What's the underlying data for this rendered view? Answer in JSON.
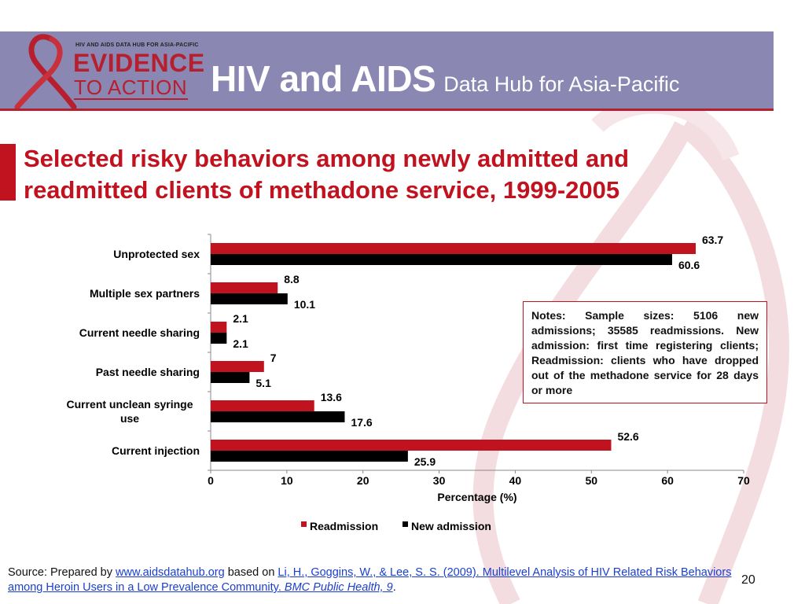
{
  "header": {
    "logo_tagline": "HIV AND AIDS DATA HUB FOR ASIA-PACIFIC",
    "logo_line1": "EVIDENCE",
    "logo_line2": "TO ACTION",
    "title_main": "HIV and AIDS",
    "title_sub": "Data Hub for Asia-Pacific"
  },
  "slide": {
    "title_line1": "Selected risky behaviors among newly admitted and",
    "title_line2": "readmitted clients of methadone service, 1999-2005",
    "page_number": "20"
  },
  "notes": {
    "text": "Notes: Sample sizes: 5106 new admissions; 35585 readmissions. New admission: first time registering clients; Readmission: clients who have dropped out of the methadone service for 28 days or more"
  },
  "source": {
    "prefix": "Source: Prepared by ",
    "link1": "www.aidsdatahub.org",
    "middle": " based on ",
    "link2": "Li, H., Goggins, W., & Lee, S. S. (2009). Multilevel Analysis of HIV Related Risk Behaviors among Heroin Users in a Low Prevalence Community. ",
    "link2_italic": "BMC Public Health, 9",
    "suffix": "."
  },
  "colors": {
    "header_bg": "#8b87b3",
    "accent_red": "#c0131f",
    "readmission": "#c0131f",
    "new_admission": "#000000"
  },
  "chart_data": {
    "type": "bar",
    "orientation": "horizontal",
    "categories": [
      "Unprotected sex",
      "Multiple sex partners",
      "Current needle sharing",
      "Past needle sharing",
      "Current unclean syringe use",
      "Current injection"
    ],
    "category_lines": [
      [
        "Unprotected sex"
      ],
      [
        "Multiple sex partners"
      ],
      [
        "Current needle sharing"
      ],
      [
        "Past needle sharing"
      ],
      [
        "Current unclean syringe",
        "use"
      ],
      [
        "Current injection"
      ]
    ],
    "series": [
      {
        "name": "Readmission",
        "color": "#c0131f",
        "values": [
          63.7,
          8.8,
          2.1,
          7,
          13.6,
          52.6
        ],
        "labels": [
          "63.7",
          "8.8",
          "2.1",
          "7",
          "13.6",
          "52.6"
        ]
      },
      {
        "name": "New admission",
        "color": "#000000",
        "values": [
          60.6,
          10.1,
          2.1,
          5.1,
          17.6,
          25.9
        ],
        "labels": [
          "60.6",
          "10.1",
          "2.1",
          "5.1",
          "17.6",
          "25.9"
        ]
      }
    ],
    "xlabel": "Percentage (%)",
    "xlim": [
      0,
      70
    ],
    "xticks": [
      0,
      10,
      20,
      30,
      40,
      50,
      60,
      70
    ],
    "grid": false,
    "legend": "bottom"
  }
}
